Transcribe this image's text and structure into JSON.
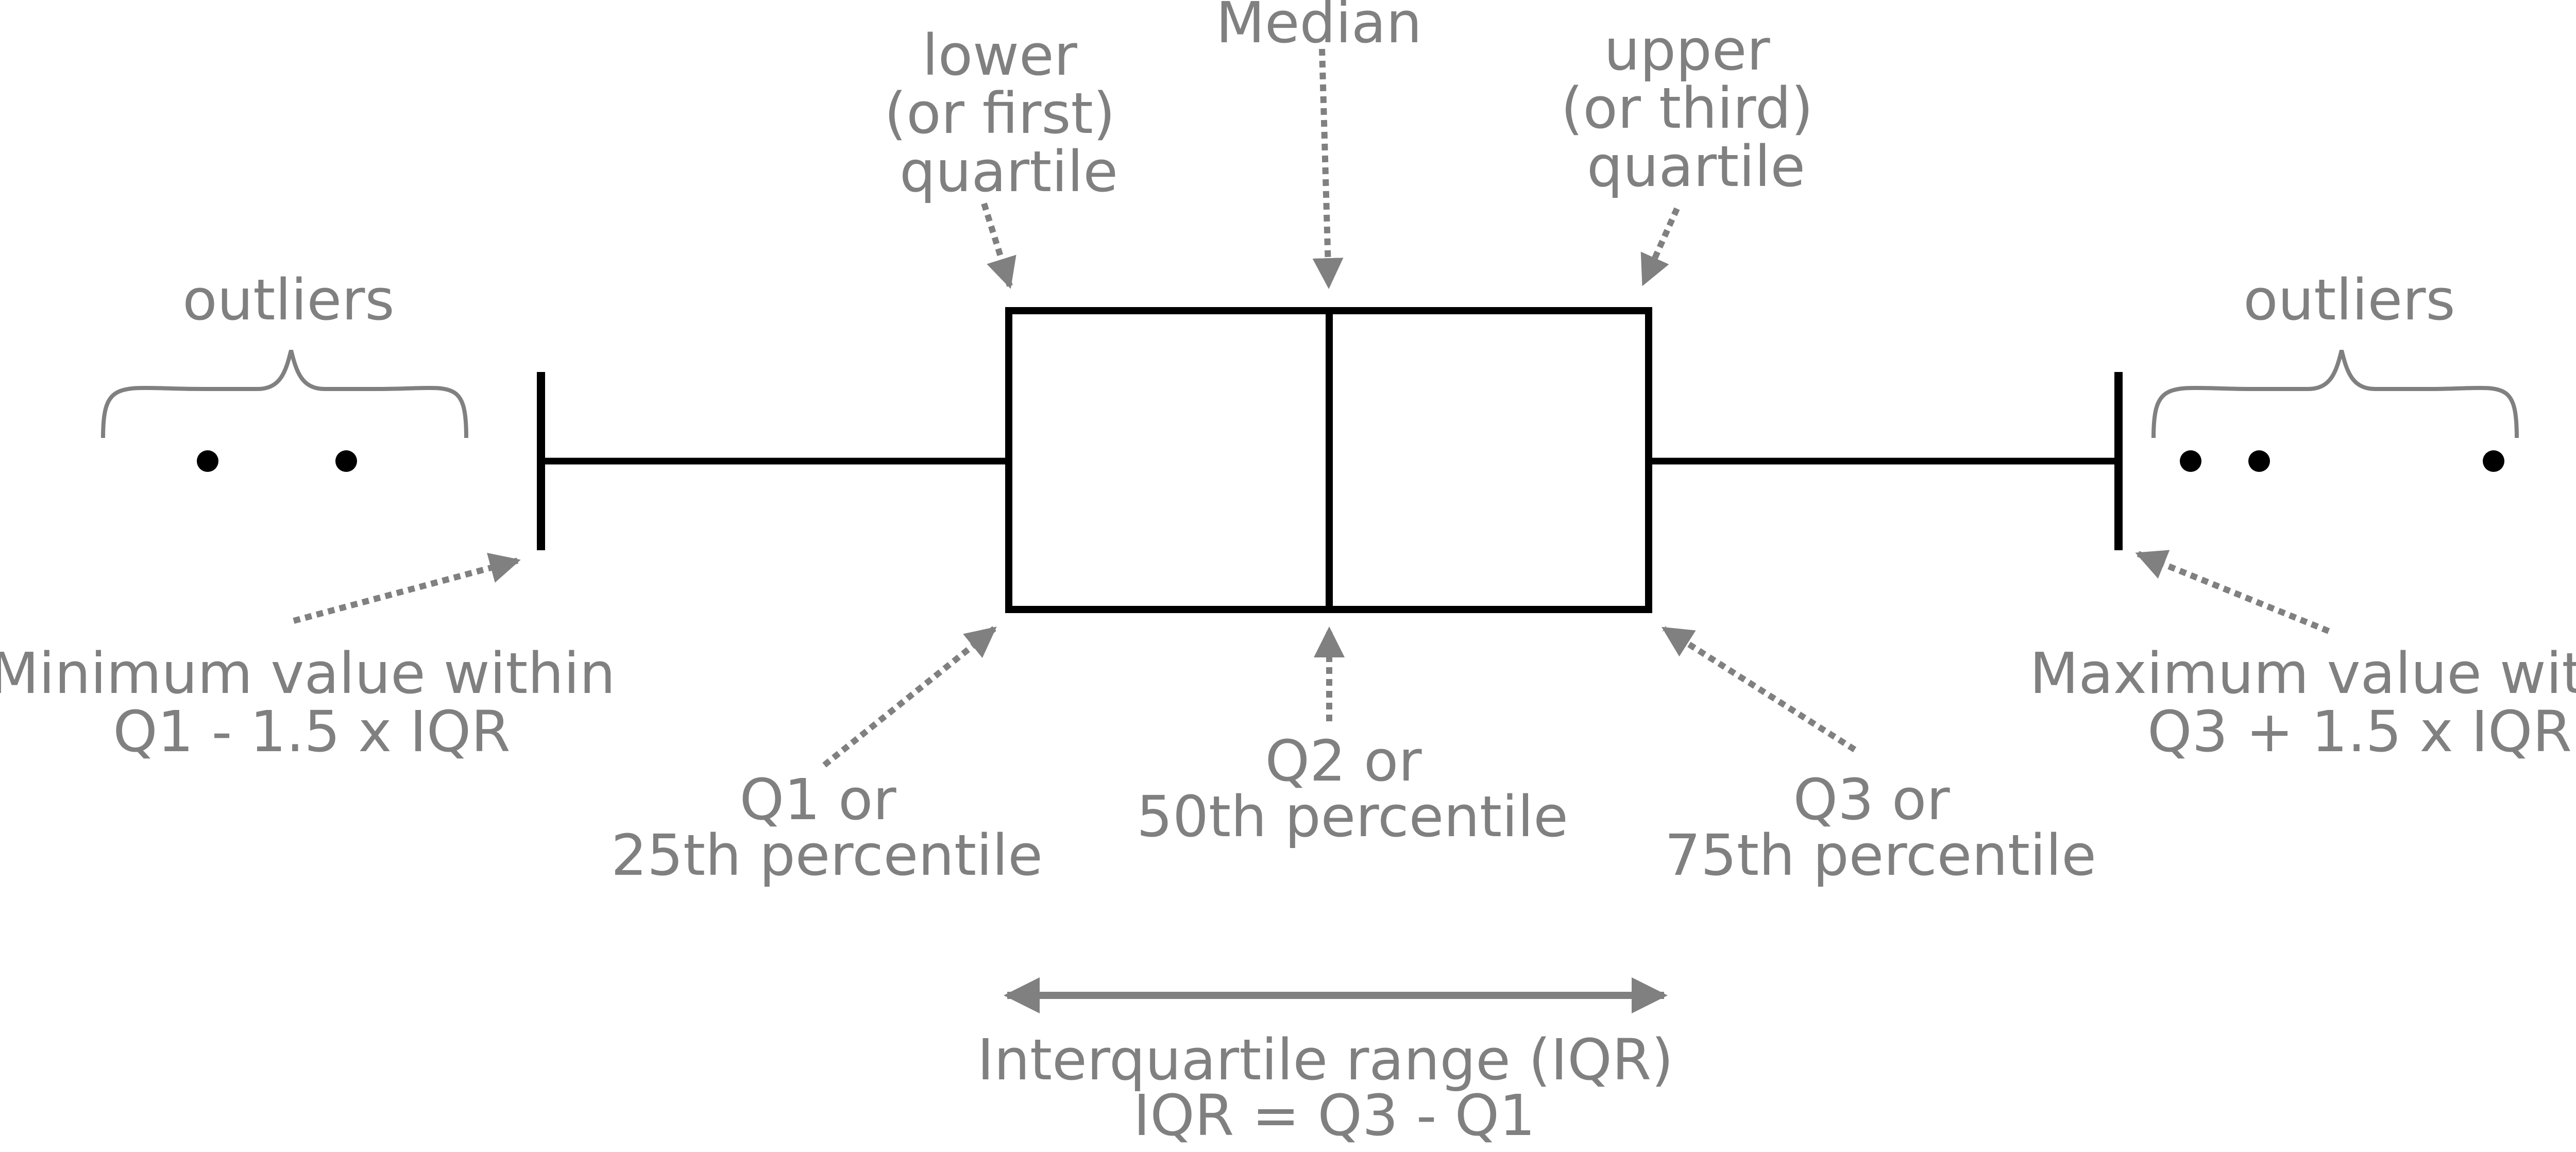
{
  "labels": {
    "lower_quartile": [
      "lower",
      "(or first)",
      "quartile"
    ],
    "median": [
      "Median"
    ],
    "upper_quartile": [
      "upper",
      "(or third)",
      "quartile"
    ],
    "outliers_left": [
      "outliers"
    ],
    "outliers_right": [
      "outliers"
    ],
    "minimum": [
      "Minimum value within",
      "Q1 - 1.5 x IQR"
    ],
    "maximum": [
      "Maximum value within",
      "Q3 + 1.5 x IQR"
    ],
    "q1": [
      "Q1 or",
      "25th percentile"
    ],
    "q2": [
      "Q2 or",
      "50th percentile"
    ],
    "q3": [
      "Q3 or",
      "75th percentile"
    ],
    "iqr": [
      "Interquartile range (IQR)",
      "IQR = Q3 - Q1"
    ]
  },
  "colors": {
    "structure": "#000000",
    "annotation": "#808080"
  }
}
